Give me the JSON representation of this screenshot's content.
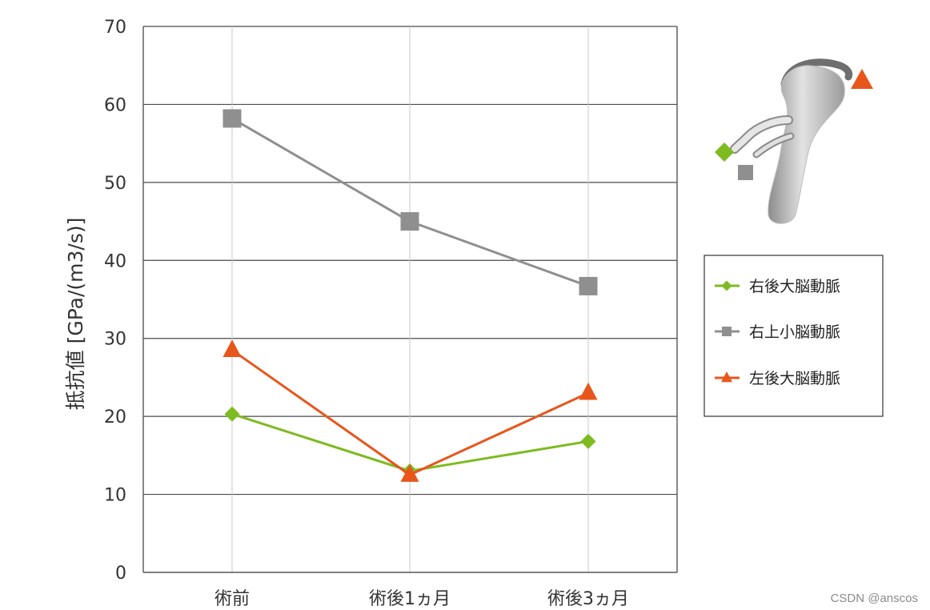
{
  "chart_data": {
    "type": "line",
    "categories": [
      "術前",
      "術後1ヵ月",
      "術後3ヵ月"
    ],
    "ylabel": "抵抗値 [GPa/(m3/s)]",
    "ylim": [
      0,
      70
    ],
    "yticks": [
      0,
      10,
      20,
      30,
      40,
      50,
      60,
      70
    ],
    "grid": true,
    "legend_position": "right",
    "series": [
      {
        "name": "右後大脳動脈",
        "values": [
          20.3,
          13.0,
          16.8
        ],
        "color": "#7dbb21",
        "marker": "diamond"
      },
      {
        "name": "右上小脳動脈",
        "values": [
          58.2,
          45.0,
          36.7
        ],
        "color": "#8f8f8f",
        "marker": "square"
      },
      {
        "name": "左後大脳動脈",
        "values": [
          28.5,
          12.5,
          23.0
        ],
        "color": "#e8561c",
        "marker": "triangle"
      }
    ]
  },
  "inset": {
    "icons": [
      "diamond-marker-icon",
      "square-marker-icon",
      "triangle-marker-icon",
      "vessel-model-icon"
    ]
  },
  "watermark": "CSDN @anscos"
}
